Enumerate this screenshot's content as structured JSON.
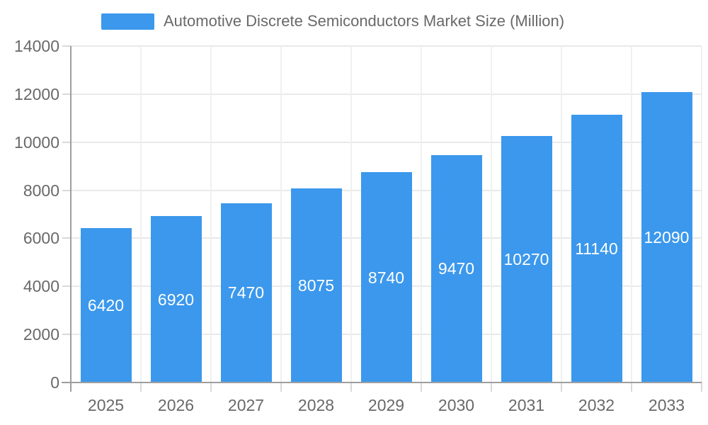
{
  "legend": {
    "label": "Automotive Discrete Semiconductors Market Size (Million)"
  },
  "chart_data": {
    "type": "bar",
    "title": "Automotive Discrete Semiconductors Market Size (Million)",
    "series_name": "Automotive Discrete Semiconductors Market Size (Million)",
    "categories": [
      "2025",
      "2026",
      "2027",
      "2028",
      "2029",
      "2030",
      "2031",
      "2032",
      "2033"
    ],
    "values": [
      6420,
      6920,
      7470,
      8075,
      8740,
      9470,
      10270,
      11140,
      12090
    ],
    "bar_labels": [
      "6420",
      "6920",
      "7470",
      "8075",
      "8740",
      "9470",
      "10270",
      "11140",
      "12090"
    ],
    "xlabel": "",
    "ylabel": "",
    "ylim": [
      0,
      14000
    ],
    "y_ticks": [
      0,
      2000,
      4000,
      6000,
      8000,
      10000,
      12000,
      14000
    ],
    "y_tick_labels": [
      "0",
      "2000",
      "4000",
      "6000",
      "8000",
      "10000",
      "12000",
      "14000"
    ],
    "grid": true,
    "legend_position": "top",
    "bar_label_position": "inside-center",
    "colors": {
      "bar": "#3B98EC",
      "bar_label": "#FFFFFF",
      "axis_label": "#696969",
      "axis_line": "#9E9E9E",
      "grid_horizontal": "#E9E9E9",
      "grid_vertical": "#F0F0F0",
      "tick": "#D9D9D9"
    }
  }
}
